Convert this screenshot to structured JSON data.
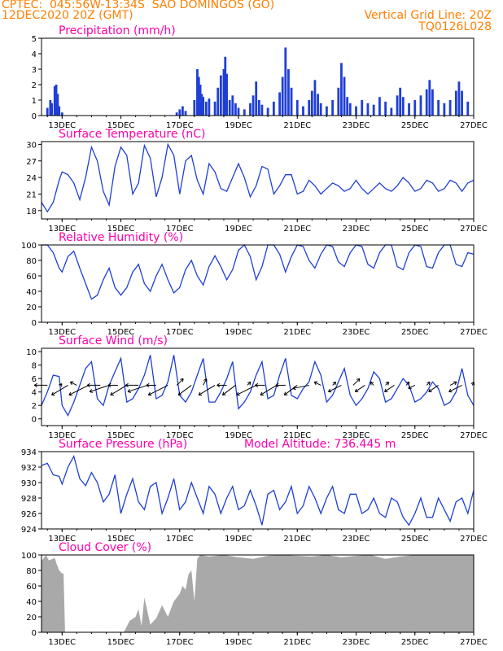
{
  "header": {
    "line1_left": "CPTEC:  045:56W-13:34S  SAO DOMINGOS (GO)",
    "line2_left": "12DEC2020 20Z (GMT)",
    "grid_note": "Vertical Grid Line: 20Z",
    "run_id": "TQ0126L028"
  },
  "colors": {
    "header": "#ff7f00",
    "title": "#ff00aa",
    "series": "#1f3fd6",
    "arrow": "#000000",
    "cloud": "#a9a9a9"
  },
  "x_axis": {
    "tick_labels": [
      "13DEC",
      "15DEC",
      "17DEC",
      "19DEC",
      "21DEC",
      "23DEC",
      "25DEC",
      "27DEC"
    ],
    "tick_days": [
      13,
      15,
      17,
      19,
      21,
      23,
      25,
      27
    ],
    "range_days": [
      12.3,
      27.0
    ]
  },
  "chart_data": [
    {
      "id": "precip",
      "type": "bar",
      "title": "Precipitation (mm/h)",
      "ylim": [
        0,
        5
      ],
      "yticks": [
        0,
        1,
        2,
        3,
        4,
        5
      ],
      "x": [
        12.5,
        12.6,
        12.65,
        12.75,
        12.8,
        12.85,
        12.9,
        13.0,
        16.9,
        17.0,
        17.1,
        17.2,
        17.5,
        17.6,
        17.65,
        17.7,
        17.75,
        17.8,
        17.9,
        18.0,
        18.2,
        18.3,
        18.4,
        18.5,
        18.55,
        18.6,
        18.7,
        18.8,
        18.9,
        19.0,
        19.2,
        19.4,
        19.5,
        19.6,
        19.7,
        19.8,
        20.0,
        20.2,
        20.4,
        20.5,
        20.6,
        20.7,
        20.8,
        21.0,
        21.2,
        21.4,
        21.5,
        21.6,
        21.7,
        21.8,
        22.0,
        22.2,
        22.4,
        22.5,
        22.6,
        22.7,
        22.8,
        23.0,
        23.2,
        23.4,
        23.6,
        23.8,
        24.0,
        24.2,
        24.4,
        24.5,
        24.6,
        24.8,
        25.0,
        25.2,
        25.4,
        25.5,
        25.6,
        25.8,
        26.0,
        26.2,
        26.4,
        26.5,
        26.6,
        26.8
      ],
      "values": [
        0.5,
        1.0,
        0.8,
        1.9,
        2.0,
        1.4,
        0.6,
        0.2,
        0.2,
        0.4,
        0.6,
        0.3,
        1.0,
        3.0,
        2.5,
        2.0,
        1.4,
        1.2,
        0.9,
        1.1,
        0.9,
        1.8,
        2.6,
        3.0,
        3.8,
        2.7,
        1.0,
        1.3,
        0.8,
        0.5,
        0.4,
        0.8,
        1.3,
        2.2,
        1.0,
        0.7,
        0.5,
        0.9,
        1.5,
        2.5,
        4.4,
        3.0,
        1.8,
        1.0,
        0.6,
        1.0,
        1.6,
        2.3,
        1.4,
        0.8,
        0.6,
        1.0,
        1.8,
        3.4,
        2.5,
        1.2,
        0.8,
        0.6,
        1.0,
        0.8,
        0.7,
        1.2,
        0.9,
        0.5,
        1.3,
        1.8,
        1.2,
        0.8,
        1.0,
        1.3,
        1.7,
        2.3,
        1.7,
        1.0,
        0.8,
        1.0,
        1.6,
        2.2,
        1.6,
        0.9
      ]
    },
    {
      "id": "temp",
      "type": "line",
      "title": "Surface Temperature (nC)",
      "ylim": [
        16.5,
        30.5
      ],
      "yticks": [
        18,
        21,
        24,
        27,
        30
      ],
      "x": [
        12.3,
        12.5,
        12.7,
        12.9,
        13.0,
        13.2,
        13.4,
        13.6,
        13.8,
        14.0,
        14.2,
        14.4,
        14.6,
        14.8,
        15.0,
        15.2,
        15.4,
        15.6,
        15.8,
        16.0,
        16.2,
        16.4,
        16.6,
        16.8,
        17.0,
        17.2,
        17.4,
        17.6,
        17.8,
        18.0,
        18.2,
        18.4,
        18.6,
        18.8,
        19.0,
        19.2,
        19.4,
        19.6,
        19.8,
        20.0,
        20.2,
        20.4,
        20.6,
        20.8,
        21.0,
        21.2,
        21.4,
        21.6,
        21.8,
        22.0,
        22.2,
        22.4,
        22.6,
        22.8,
        23.0,
        23.2,
        23.4,
        23.6,
        23.8,
        24.0,
        24.2,
        24.4,
        24.6,
        24.8,
        25.0,
        25.2,
        25.4,
        25.6,
        25.8,
        26.0,
        26.2,
        26.4,
        26.6,
        26.8,
        27.0
      ],
      "values": [
        19.5,
        17.8,
        19.5,
        23.5,
        25.0,
        24.5,
        23.0,
        20.0,
        24.0,
        29.5,
        27.0,
        21.5,
        19.0,
        26.0,
        29.5,
        28.0,
        21.0,
        23.0,
        29.8,
        27.5,
        20.5,
        24.0,
        30.0,
        28.0,
        21.0,
        27.0,
        28.0,
        23.5,
        21.0,
        26.5,
        25.0,
        22.0,
        21.5,
        24.0,
        26.5,
        24.0,
        20.5,
        22.5,
        26.0,
        25.5,
        21.0,
        22.5,
        24.5,
        24.5,
        21.0,
        21.5,
        23.5,
        22.5,
        21.0,
        22.0,
        23.0,
        22.5,
        21.5,
        22.0,
        23.5,
        22.0,
        21.0,
        22.0,
        23.0,
        22.0,
        21.5,
        22.5,
        24.0,
        23.0,
        21.5,
        22.0,
        23.5,
        23.0,
        21.5,
        22.0,
        23.5,
        23.0,
        21.5,
        23.0,
        23.5
      ]
    },
    {
      "id": "rh",
      "type": "line",
      "title": "Relative Humidity (%)",
      "ylim": [
        0,
        100
      ],
      "yticks": [
        0,
        20,
        40,
        60,
        80,
        100
      ],
      "x": [
        12.3,
        12.5,
        12.7,
        12.9,
        13.0,
        13.2,
        13.4,
        13.6,
        13.8,
        14.0,
        14.2,
        14.4,
        14.6,
        14.8,
        15.0,
        15.2,
        15.4,
        15.6,
        15.8,
        16.0,
        16.2,
        16.4,
        16.6,
        16.8,
        17.0,
        17.2,
        17.4,
        17.6,
        17.8,
        18.0,
        18.2,
        18.4,
        18.6,
        18.8,
        19.0,
        19.2,
        19.4,
        19.6,
        19.8,
        20.0,
        20.2,
        20.4,
        20.6,
        20.8,
        21.0,
        21.2,
        21.4,
        21.6,
        21.8,
        22.0,
        22.2,
        22.4,
        22.6,
        22.8,
        23.0,
        23.2,
        23.4,
        23.6,
        23.8,
        24.0,
        24.2,
        24.4,
        24.6,
        24.8,
        25.0,
        25.2,
        25.4,
        25.6,
        25.8,
        26.0,
        26.2,
        26.4,
        26.6,
        26.8,
        27.0
      ],
      "values": [
        100,
        100,
        90,
        70,
        65,
        85,
        92,
        70,
        50,
        30,
        35,
        55,
        70,
        45,
        35,
        45,
        65,
        75,
        50,
        40,
        60,
        75,
        55,
        38,
        45,
        68,
        80,
        60,
        48,
        72,
        86,
        72,
        55,
        68,
        93,
        100,
        85,
        55,
        72,
        100,
        100,
        88,
        65,
        85,
        100,
        98,
        80,
        70,
        88,
        100,
        98,
        78,
        72,
        90,
        100,
        98,
        75,
        70,
        90,
        100,
        100,
        72,
        68,
        90,
        100,
        98,
        72,
        70,
        90,
        100,
        100,
        75,
        72,
        90,
        88
      ]
    },
    {
      "id": "wind",
      "type": "line",
      "title": "Surface Wind (m/s)",
      "ylim": [
        -1,
        10.5
      ],
      "yticks": [
        0,
        2,
        4,
        6,
        8,
        10
      ],
      "x": [
        12.3,
        12.5,
        12.7,
        12.9,
        13.0,
        13.2,
        13.4,
        13.6,
        13.8,
        14.0,
        14.2,
        14.4,
        14.6,
        14.8,
        15.0,
        15.2,
        15.4,
        15.6,
        15.8,
        16.0,
        16.2,
        16.4,
        16.6,
        16.8,
        17.0,
        17.2,
        17.4,
        17.6,
        17.8,
        18.0,
        18.2,
        18.4,
        18.6,
        18.8,
        19.0,
        19.2,
        19.4,
        19.6,
        19.8,
        20.0,
        20.2,
        20.4,
        20.6,
        20.8,
        21.0,
        21.2,
        21.4,
        21.6,
        21.8,
        22.0,
        22.2,
        22.4,
        22.6,
        22.8,
        23.0,
        23.2,
        23.4,
        23.6,
        23.8,
        24.0,
        24.2,
        24.4,
        24.6,
        24.8,
        25.0,
        25.2,
        25.4,
        25.6,
        25.8,
        26.0,
        26.2,
        26.4,
        26.6,
        26.8,
        27.0
      ],
      "values": [
        2.0,
        4.0,
        6.5,
        6.3,
        2.0,
        0.5,
        2.5,
        5.0,
        7.5,
        8.5,
        3.0,
        2.0,
        5.0,
        7.0,
        9.0,
        2.5,
        3.0,
        4.5,
        6.5,
        9.5,
        3.0,
        3.5,
        5.5,
        9.5,
        3.5,
        2.5,
        4.0,
        6.5,
        9.0,
        2.5,
        2.5,
        4.0,
        6.0,
        8.5,
        1.5,
        2.5,
        4.0,
        6.5,
        8.5,
        3.0,
        3.5,
        6.5,
        9.0,
        3.5,
        3.0,
        4.5,
        5.5,
        8.5,
        6.5,
        2.5,
        3.5,
        5.5,
        7.5,
        3.5,
        2.0,
        3.0,
        4.5,
        7.0,
        6.0,
        2.5,
        3.0,
        4.5,
        6.0,
        5.0,
        2.5,
        3.0,
        4.0,
        5.5,
        4.5,
        2.0,
        2.5,
        4.0,
        7.5,
        3.5,
        2.0
      ]
    },
    {
      "id": "wind_vectors",
      "type": "scatter",
      "title": "",
      "x": [
        12.5,
        12.95,
        13.2,
        13.5,
        13.9,
        14.3,
        14.6,
        14.9,
        15.2,
        15.6,
        15.9,
        16.2,
        16.6,
        16.9,
        17.4,
        17.8,
        18.2,
        18.6,
        18.9,
        19.3,
        19.6,
        19.9,
        20.3,
        20.6,
        21.0,
        21.4,
        21.8,
        22.2,
        22.5,
        22.9,
        23.3,
        23.6,
        24.0,
        24.3,
        24.7,
        25.0,
        25.4,
        25.8,
        26.2,
        26.6,
        26.95
      ],
      "u": [
        -4,
        0.3,
        -5,
        -2,
        -6,
        -4,
        -6,
        -3,
        -5,
        -4,
        -6,
        -3,
        -6,
        2,
        -4,
        1,
        -5,
        -3,
        -4,
        1,
        -6,
        -3,
        -5,
        -3,
        -4,
        -5,
        -2,
        1,
        -4,
        2,
        -3,
        -1,
        1,
        -3,
        1,
        -2,
        1,
        -3,
        2,
        -4,
        0.5
      ],
      "v": [
        0,
        0.5,
        -3,
        1,
        -3,
        0,
        -2,
        0,
        -3,
        0,
        -2,
        0,
        -3,
        2,
        -3,
        2,
        -3,
        0,
        -3,
        1,
        -3,
        0,
        -3,
        0,
        -3,
        -1,
        1,
        1,
        -2,
        2,
        -2,
        1,
        1,
        -2,
        1,
        -1,
        1,
        -2,
        1,
        -2,
        1
      ]
    },
    {
      "id": "pressure",
      "type": "line",
      "title": "Surface Pressure (hPa)",
      "annotation": "Model Altitude: 736.445  m",
      "ylim": [
        924,
        934
      ],
      "yticks": [
        924,
        926,
        928,
        930,
        932,
        934
      ],
      "x": [
        12.3,
        12.5,
        12.7,
        12.9,
        13.0,
        13.2,
        13.4,
        13.6,
        13.8,
        14.0,
        14.2,
        14.4,
        14.6,
        14.8,
        15.0,
        15.2,
        15.4,
        15.6,
        15.8,
        16.0,
        16.2,
        16.4,
        16.6,
        16.8,
        17.0,
        17.2,
        17.4,
        17.6,
        17.8,
        18.0,
        18.2,
        18.4,
        18.6,
        18.8,
        19.0,
        19.2,
        19.4,
        19.6,
        19.8,
        20.0,
        20.2,
        20.4,
        20.6,
        20.8,
        21.0,
        21.2,
        21.4,
        21.6,
        21.8,
        22.0,
        22.2,
        22.4,
        22.6,
        22.8,
        23.0,
        23.2,
        23.4,
        23.6,
        23.8,
        24.0,
        24.2,
        24.4,
        24.6,
        24.8,
        25.0,
        25.2,
        25.4,
        25.6,
        25.8,
        26.0,
        26.2,
        26.4,
        26.6,
        26.8,
        27.0
      ],
      "values": [
        932.2,
        932.5,
        931.0,
        930.8,
        929.8,
        932.0,
        933.4,
        930.5,
        929.6,
        931.3,
        930.0,
        927.5,
        928.5,
        931.0,
        926.0,
        928.5,
        930.5,
        927.5,
        926.5,
        929.5,
        930.0,
        926.0,
        928.0,
        930.5,
        926.5,
        927.5,
        930.0,
        928.0,
        926.0,
        929.5,
        928.5,
        926.0,
        928.0,
        929.5,
        926.5,
        927.0,
        929.0,
        927.0,
        924.5,
        928.5,
        929.0,
        926.5,
        927.5,
        929.5,
        926.0,
        927.0,
        929.5,
        928.0,
        926.0,
        928.0,
        929.5,
        926.5,
        926.0,
        928.5,
        928.5,
        926.0,
        926.5,
        928.0,
        926.0,
        925.5,
        928.0,
        927.5,
        925.5,
        924.5,
        926.0,
        928.0,
        925.5,
        925.5,
        928.0,
        926.5,
        925.0,
        927.5,
        928.0,
        926.0,
        929.0
      ]
    },
    {
      "id": "cloud",
      "type": "area",
      "title": "Cloud Cover (%)",
      "ylim": [
        0,
        100
      ],
      "yticks": [
        0,
        20,
        40,
        60,
        80,
        100
      ],
      "x": [
        12.3,
        12.45,
        12.55,
        12.75,
        12.8,
        12.9,
        13.0,
        13.05,
        13.1,
        13.5,
        13.7,
        13.75,
        13.9,
        14.3,
        14.5,
        14.8,
        15.1,
        15.3,
        15.5,
        15.6,
        15.7,
        15.8,
        16.0,
        16.2,
        16.4,
        16.6,
        16.8,
        17.0,
        17.1,
        17.2,
        17.3,
        17.4,
        17.5,
        17.6,
        17.7,
        18.0,
        18.5,
        19.0,
        19.5,
        20.0,
        20.5,
        21.0,
        21.5,
        22.0,
        22.5,
        23.0,
        23.5,
        24.0,
        24.5,
        25.0,
        25.5,
        26.0,
        26.5,
        27.0
      ],
      "values": [
        92,
        100,
        93,
        96,
        90,
        80,
        76,
        76,
        0,
        0,
        0,
        0,
        0,
        0,
        0,
        0,
        0,
        15,
        20,
        30,
        8,
        45,
        10,
        18,
        35,
        20,
        40,
        50,
        60,
        55,
        75,
        80,
        40,
        95,
        100,
        98,
        100,
        97,
        95,
        99,
        100,
        99,
        98,
        100,
        97,
        99,
        100,
        95,
        98,
        100,
        100,
        100,
        100,
        100
      ]
    }
  ]
}
